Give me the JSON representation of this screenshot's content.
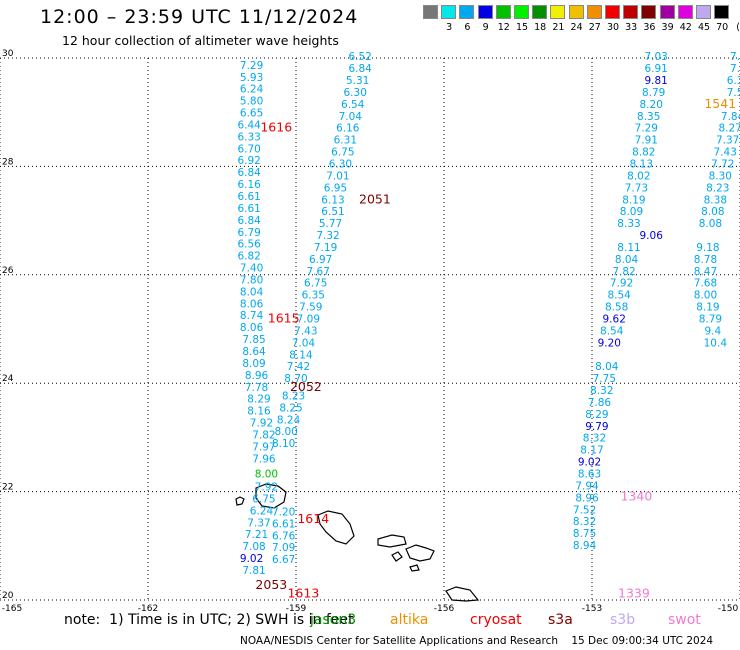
{
  "header": {
    "title": "12:00 – 23:59 UTC 11/12/2024",
    "subtitle": "12 hour collection of altimeter wave heights"
  },
  "legend": {
    "unit": "(ft)",
    "items": [
      {
        "label": "",
        "color": "#777777"
      },
      {
        "label": "3",
        "color": "#00e8e8"
      },
      {
        "label": "6",
        "color": "#00a8f0"
      },
      {
        "label": "9",
        "color": "#0000e0"
      },
      {
        "label": "12",
        "color": "#00c000"
      },
      {
        "label": "15",
        "color": "#00f000"
      },
      {
        "label": "18",
        "color": "#009000"
      },
      {
        "label": "21",
        "color": "#f0f000"
      },
      {
        "label": "24",
        "color": "#f0c000"
      },
      {
        "label": "27",
        "color": "#f09000"
      },
      {
        "label": "30",
        "color": "#f00000"
      },
      {
        "label": "33",
        "color": "#c00000"
      },
      {
        "label": "36",
        "color": "#800000"
      },
      {
        "label": "39",
        "color": "#a000a0"
      },
      {
        "label": "42",
        "color": "#e000e0"
      },
      {
        "label": "45",
        "color": "#c0a8f0"
      },
      {
        "label": "70",
        "color": "#000000"
      }
    ]
  },
  "axes": {
    "lat_labels": [
      "30",
      "28",
      "26",
      "24",
      "22",
      "20"
    ],
    "lon_labels": [
      "-165",
      "-162",
      "-159",
      "-156",
      "-153",
      "-150"
    ]
  },
  "tracks": [
    {
      "color": "#00a8f0",
      "values": [
        {
          "v": "7.29",
          "lon": -159.9,
          "lat": 29.8
        },
        {
          "v": "5.93",
          "lon": -159.9,
          "lat": 29.58
        },
        {
          "v": "6.24",
          "lon": -159.9,
          "lat": 29.36
        },
        {
          "v": "5.80",
          "lon": -159.9,
          "lat": 29.14
        },
        {
          "v": "6.65",
          "lon": -159.9,
          "lat": 28.92
        },
        {
          "v": "6.44",
          "lon": -159.95,
          "lat": 28.7
        },
        {
          "v": "6.33",
          "lon": -159.95,
          "lat": 28.48
        },
        {
          "v": "6.70",
          "lon": -159.95,
          "lat": 28.26
        },
        {
          "v": "6.92",
          "lon": -159.95,
          "lat": 28.04
        },
        {
          "v": "6.84",
          "lon": -159.95,
          "lat": 27.82
        },
        {
          "v": "6.16",
          "lon": -159.95,
          "lat": 27.6
        },
        {
          "v": "6.61",
          "lon": -159.95,
          "lat": 27.38
        },
        {
          "v": "6.61",
          "lon": -159.95,
          "lat": 27.16
        },
        {
          "v": "6.84",
          "lon": -159.95,
          "lat": 26.94
        },
        {
          "v": "6.79",
          "lon": -159.95,
          "lat": 26.72
        },
        {
          "v": "6.56",
          "lon": -159.95,
          "lat": 26.5
        },
        {
          "v": "6.82",
          "lon": -159.95,
          "lat": 26.28
        },
        {
          "v": "7.40",
          "lon": -159.9,
          "lat": 26.06
        },
        {
          "v": "7.80",
          "lon": -159.9,
          "lat": 25.84
        },
        {
          "v": "8.04",
          "lon": -159.9,
          "lat": 25.62
        },
        {
          "v": "8.06",
          "lon": -159.9,
          "lat": 25.4
        },
        {
          "v": "8.74",
          "lon": -159.9,
          "lat": 25.18
        },
        {
          "v": "8.06",
          "lon": -159.9,
          "lat": 24.96
        },
        {
          "v": "7.85",
          "lon": -159.85,
          "lat": 24.74
        },
        {
          "v": "8.64",
          "lon": -159.85,
          "lat": 24.52
        },
        {
          "v": "8.09",
          "lon": -159.85,
          "lat": 24.3
        },
        {
          "v": "8.96",
          "lon": -159.8,
          "lat": 24.08
        },
        {
          "v": "7.78",
          "lon": -159.8,
          "lat": 23.86
        },
        {
          "v": "8.29",
          "lon": -159.75,
          "lat": 23.64
        },
        {
          "v": "8.16",
          "lon": -159.75,
          "lat": 23.42
        },
        {
          "v": "7.92",
          "lon": -159.7,
          "lat": 23.2
        },
        {
          "v": "7.82",
          "lon": -159.65,
          "lat": 22.98
        },
        {
          "v": "7.97",
          "lon": -159.65,
          "lat": 22.76
        },
        {
          "v": "7.96",
          "lon": -159.65,
          "lat": 22.54
        },
        {
          "v": "7.92",
          "lon": -159.6,
          "lat": 22.02
        },
        {
          "v": "6.75",
          "lon": -159.65,
          "lat": 21.8
        },
        {
          "v": "6.24",
          "lon": -159.7,
          "lat": 21.58
        },
        {
          "v": "7.37",
          "lon": -159.75,
          "lat": 21.36
        },
        {
          "v": "7.21",
          "lon": -159.8,
          "lat": 21.14
        },
        {
          "v": "7.08",
          "lon": -159.85,
          "lat": 20.92
        }
      ]
    },
    {
      "color": "#0000e0",
      "values": [
        {
          "v": "9.02",
          "lon": -159.9,
          "lat": 20.7
        }
      ]
    },
    {
      "color": "#00a8f0",
      "values": [
        {
          "v": "7.81",
          "lon": -159.85,
          "lat": 20.48
        },
        {
          "v": "6.52",
          "lon": -157.7,
          "lat": 29.96
        },
        {
          "v": "6.84",
          "lon": -157.7,
          "lat": 29.74
        },
        {
          "v": "5.31",
          "lon": -157.75,
          "lat": 29.52
        },
        {
          "v": "6.30",
          "lon": -157.8,
          "lat": 29.3
        },
        {
          "v": "6.54",
          "lon": -157.85,
          "lat": 29.08
        },
        {
          "v": "7.04",
          "lon": -157.9,
          "lat": 28.86
        },
        {
          "v": "6.16",
          "lon": -157.95,
          "lat": 28.64
        },
        {
          "v": "6.31",
          "lon": -158.0,
          "lat": 28.42
        },
        {
          "v": "6.75",
          "lon": -158.05,
          "lat": 28.2
        },
        {
          "v": "6.30",
          "lon": -158.1,
          "lat": 27.98
        },
        {
          "v": "7.01",
          "lon": -158.15,
          "lat": 27.76
        },
        {
          "v": "6.95",
          "lon": -158.2,
          "lat": 27.54
        },
        {
          "v": "6.13",
          "lon": -158.25,
          "lat": 27.32
        },
        {
          "v": "6.51",
          "lon": -158.25,
          "lat": 27.1
        },
        {
          "v": "5.77",
          "lon": -158.3,
          "lat": 26.88
        },
        {
          "v": "7.32",
          "lon": -158.35,
          "lat": 26.66
        },
        {
          "v": "7.19",
          "lon": -158.4,
          "lat": 26.44
        },
        {
          "v": "6.97",
          "lon": -158.5,
          "lat": 26.22
        },
        {
          "v": "7.67",
          "lon": -158.55,
          "lat": 26.0
        },
        {
          "v": "6.75",
          "lon": -158.6,
          "lat": 25.78
        },
        {
          "v": "6.35",
          "lon": -158.65,
          "lat": 25.56
        },
        {
          "v": "7.59",
          "lon": -158.7,
          "lat": 25.34
        },
        {
          "v": "7.09",
          "lon": -158.75,
          "lat": 25.12
        },
        {
          "v": "7.43",
          "lon": -158.8,
          "lat": 24.9
        },
        {
          "v": "7.04",
          "lon": -158.85,
          "lat": 24.68
        },
        {
          "v": "8.14",
          "lon": -158.9,
          "lat": 24.46
        },
        {
          "v": "7.42",
          "lon": -158.95,
          "lat": 24.24
        },
        {
          "v": "8.70",
          "lon": -159.0,
          "lat": 24.02
        },
        {
          "v": "8.23",
          "lon": -159.05,
          "lat": 23.7
        },
        {
          "v": "8.25",
          "lon": -159.1,
          "lat": 23.48
        },
        {
          "v": "8.24",
          "lon": -159.15,
          "lat": 23.26
        },
        {
          "v": "8.00",
          "lon": -159.2,
          "lat": 23.04
        },
        {
          "v": "8.10",
          "lon": -159.25,
          "lat": 22.82
        },
        {
          "v": "7.20",
          "lon": -159.25,
          "lat": 21.56
        },
        {
          "v": "6.61",
          "lon": -159.25,
          "lat": 21.34
        },
        {
          "v": "6.76",
          "lon": -159.25,
          "lat": 21.12
        },
        {
          "v": "7.09",
          "lon": -159.25,
          "lat": 20.9
        },
        {
          "v": "6.67",
          "lon": -159.25,
          "lat": 20.68
        }
      ]
    },
    {
      "color": "#00c000",
      "values": [
        {
          "v": "8.00",
          "lon": -159.6,
          "lat": 22.26
        }
      ]
    },
    {
      "color": "#00a8f0",
      "values": [
        {
          "v": "7.03",
          "lon": -151.7,
          "lat": 29.96
        },
        {
          "v": "6.91",
          "lon": -151.7,
          "lat": 29.74
        },
        {
          "v": "8.79",
          "lon": -151.75,
          "lat": 29.3
        },
        {
          "v": "8.20",
          "lon": -151.8,
          "lat": 29.08
        },
        {
          "v": "8.35",
          "lon": -151.85,
          "lat": 28.86
        },
        {
          "v": "7.29",
          "lon": -151.9,
          "lat": 28.64
        },
        {
          "v": "7.91",
          "lon": -151.9,
          "lat": 28.42
        },
        {
          "v": "8.82",
          "lon": -151.95,
          "lat": 28.2
        },
        {
          "v": "8.13",
          "lon": -152.0,
          "lat": 27.98
        },
        {
          "v": "8.02",
          "lon": -152.05,
          "lat": 27.76
        },
        {
          "v": "7.73",
          "lon": -152.1,
          "lat": 27.54
        },
        {
          "v": "8.19",
          "lon": -152.15,
          "lat": 27.32
        },
        {
          "v": "8.09",
          "lon": -152.2,
          "lat": 27.1
        },
        {
          "v": "8.33",
          "lon": -152.25,
          "lat": 26.88
        },
        {
          "v": "8.11",
          "lon": -152.25,
          "lat": 26.44
        },
        {
          "v": "8.04",
          "lon": -152.3,
          "lat": 26.22
        },
        {
          "v": "7.82",
          "lon": -152.35,
          "lat": 26.0
        },
        {
          "v": "7.92",
          "lon": -152.4,
          "lat": 25.78
        },
        {
          "v": "8.54",
          "lon": -152.45,
          "lat": 25.56
        },
        {
          "v": "8.58",
          "lon": -152.5,
          "lat": 25.34
        },
        {
          "v": "8.54",
          "lon": -152.6,
          "lat": 24.9
        },
        {
          "v": "8.04",
          "lon": -152.7,
          "lat": 24.24
        },
        {
          "v": "7.75",
          "lon": -152.75,
          "lat": 24.02
        },
        {
          "v": "8.32",
          "lon": -152.8,
          "lat": 23.8
        },
        {
          "v": "7.86",
          "lon": -152.85,
          "lat": 23.58
        },
        {
          "v": "8.29",
          "lon": -152.9,
          "lat": 23.36
        },
        {
          "v": "8.32",
          "lon": -152.95,
          "lat": 22.92
        },
        {
          "v": "8.17",
          "lon": -153.0,
          "lat": 22.7
        },
        {
          "v": "8.63",
          "lon": -153.05,
          "lat": 22.26
        },
        {
          "v": "7.94",
          "lon": -153.1,
          "lat": 22.04
        },
        {
          "v": "8.96",
          "lon": -153.1,
          "lat": 21.82
        },
        {
          "v": "7.52",
          "lon": -153.15,
          "lat": 21.6
        },
        {
          "v": "8.32",
          "lon": -153.15,
          "lat": 21.38
        },
        {
          "v": "8.75",
          "lon": -153.15,
          "lat": 21.16
        },
        {
          "v": "8.94",
          "lon": -153.15,
          "lat": 20.94
        }
      ]
    },
    {
      "color": "#0000e0",
      "values": [
        {
          "v": "9.81",
          "lon": -151.7,
          "lat": 29.52
        },
        {
          "v": "9.06",
          "lon": -151.8,
          "lat": 26.66
        },
        {
          "v": "9.62",
          "lon": -152.55,
          "lat": 25.12
        },
        {
          "v": "9.20",
          "lon": -152.65,
          "lat": 24.68
        },
        {
          "v": "9.79",
          "lon": -152.9,
          "lat": 23.14
        },
        {
          "v": "9.02",
          "lon": -153.05,
          "lat": 22.48
        }
      ]
    },
    {
      "color": "#00a8f0",
      "values": [
        {
          "v": "7.",
          "lon": -150.1,
          "lat": 29.96
        },
        {
          "v": "7.",
          "lon": -150.1,
          "lat": 29.74
        },
        {
          "v": "6.3",
          "lon": -150.1,
          "lat": 29.52
        },
        {
          "v": "7.5",
          "lon": -150.1,
          "lat": 29.3
        },
        {
          "v": "7.84",
          "lon": -150.15,
          "lat": 28.86
        },
        {
          "v": "8.27",
          "lon": -150.2,
          "lat": 28.64
        },
        {
          "v": "7.37",
          "lon": -150.25,
          "lat": 28.42
        },
        {
          "v": "7.43",
          "lon": -150.3,
          "lat": 28.2
        },
        {
          "v": "7.72",
          "lon": -150.35,
          "lat": 27.98
        },
        {
          "v": "8.30",
          "lon": -150.4,
          "lat": 27.76
        },
        {
          "v": "8.23",
          "lon": -150.45,
          "lat": 27.54
        },
        {
          "v": "8.38",
          "lon": -150.5,
          "lat": 27.32
        },
        {
          "v": "8.08",
          "lon": -150.55,
          "lat": 27.1
        },
        {
          "v": "8.08",
          "lon": -150.6,
          "lat": 26.88
        },
        {
          "v": "9.18",
          "lon": -150.65,
          "lat": 26.44
        },
        {
          "v": "8.78",
          "lon": -150.7,
          "lat": 26.22
        },
        {
          "v": "8.47",
          "lon": -150.7,
          "lat": 26.0
        },
        {
          "v": "7.68",
          "lon": -150.7,
          "lat": 25.78
        },
        {
          "v": "8.00",
          "lon": -150.7,
          "lat": 25.56
        },
        {
          "v": "8.19",
          "lon": -150.65,
          "lat": 25.34
        },
        {
          "v": "8.79",
          "lon": -150.6,
          "lat": 25.12
        },
        {
          "v": "9.4",
          "lon": -150.55,
          "lat": 24.9
        },
        {
          "v": "10.4",
          "lon": -150.5,
          "lat": 24.68
        }
      ]
    }
  ],
  "passes": [
    {
      "label": "1616",
      "color": "#f00000",
      "lon": -159.4,
      "lat": 28.64
    },
    {
      "label": "2051",
      "color": "#800000",
      "lon": -157.4,
      "lat": 27.32
    },
    {
      "label": "1615",
      "color": "#f00000",
      "lon": -159.25,
      "lat": 25.12
    },
    {
      "label": "2052",
      "color": "#800000",
      "lon": -158.8,
      "lat": 23.86
    },
    {
      "label": "1614",
      "color": "#f00000",
      "lon": -158.65,
      "lat": 21.42
    },
    {
      "label": "2053",
      "color": "#800000",
      "lon": -159.5,
      "lat": 20.2
    },
    {
      "label": "1613",
      "color": "#f00000",
      "lon": -158.85,
      "lat": 20.05
    },
    {
      "label": "1541",
      "color": "#f09000",
      "lon": -150.4,
      "lat": 29.08
    },
    {
      "label": "1340",
      "color": "#f07ad0",
      "lon": -152.1,
      "lat": 21.84
    },
    {
      "label": "1339",
      "color": "#f07ad0",
      "lon": -152.15,
      "lat": 20.05
    }
  ],
  "footer": {
    "note": "note:  1) Time is in UTC; 2) SWH is in feet",
    "satellites": [
      {
        "name": "jason3",
        "color": "#009000"
      },
      {
        "name": "altika",
        "color": "#f09000"
      },
      {
        "name": "cryosat",
        "color": "#f00000"
      },
      {
        "name": "s3a",
        "color": "#800000"
      },
      {
        "name": "s3b",
        "color": "#c0a8f0"
      },
      {
        "name": "swot",
        "color": "#f07ad0"
      }
    ],
    "credit": "NOAA/NESDIS Center for Satellite Applications and Research    15 Dec 09:00:34 UTC 2024"
  }
}
